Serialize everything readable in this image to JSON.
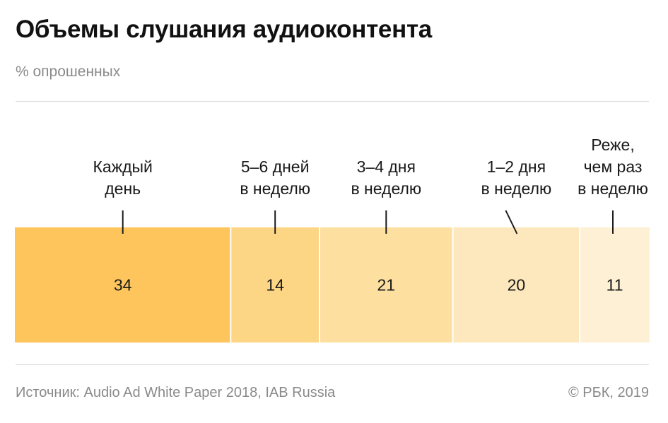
{
  "header": {
    "title": "Объемы слушания аудиоконтента",
    "subtitle": "% опрошенных"
  },
  "footer": {
    "source": "Источник: Audio Ad White Paper 2018, IAB Russia",
    "copyright": "© РБК, 2019"
  },
  "colors": {
    "segments": [
      "#fdc55c",
      "#fdd685",
      "#fde0a0",
      "#fde8bd",
      "#fef0d4"
    ],
    "rule": "#d9d9d9",
    "text": "#1a1a1a",
    "muted": "#8a8a8a"
  },
  "chart_data": {
    "type": "bar",
    "orientation": "horizontal-stacked-100",
    "title": "Объемы слушания аудиоконтента",
    "subtitle": "% опрошенных",
    "categories": [
      [
        "Каждый",
        "день"
      ],
      [
        "5–6 дней",
        "в неделю"
      ],
      [
        "3–4 дня",
        "в неделю"
      ],
      [
        "1–2 дня",
        "в неделю"
      ],
      [
        "Реже,",
        "чем раз",
        "в неделю"
      ]
    ],
    "values": [
      34,
      14,
      21,
      20,
      11
    ],
    "data_labels": [
      "34",
      "14",
      "21",
      "20",
      "11"
    ],
    "total": 100,
    "legend": "none",
    "grid": false
  }
}
